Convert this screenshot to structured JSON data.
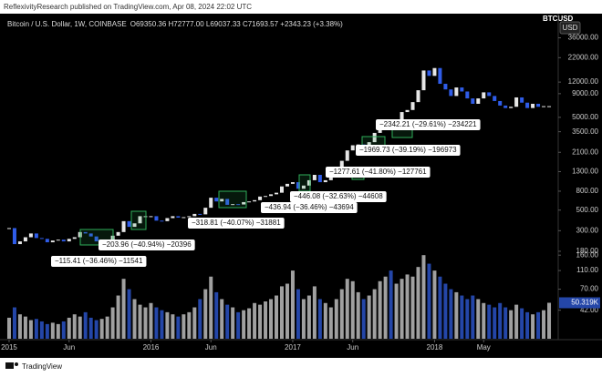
{
  "chart_data": {
    "type": "candlestick",
    "publisher": "ReflexivityResearch published on TradingView.com, Apr 08, 2024 22:02 UTC",
    "title": "Bitcoin / U.S. Dollar, 1W, COINBASE",
    "ohlc": "O69350.36 H72777.00 L69037.33 C71693.57 +2343.23 (+3.38%)",
    "currency": "USD",
    "brand": "TradingView",
    "log_scale": true,
    "grid": false,
    "xlim": [
      -1,
      100
    ],
    "xticks": [
      {
        "value": 0,
        "label": "2015"
      },
      {
        "value": 11,
        "label": "Jun"
      },
      {
        "value": 26,
        "label": "2016"
      },
      {
        "value": 37,
        "label": "Jun"
      },
      {
        "value": 52,
        "label": "2017"
      },
      {
        "value": 63,
        "label": "Jun"
      },
      {
        "value": 78,
        "label": "2018"
      },
      {
        "value": 87,
        "label": "May"
      }
    ],
    "ylim": [
      150,
      50000
    ],
    "yticks": [
      {
        "value": 36000,
        "label": "36000.00"
      },
      {
        "value": 22000,
        "label": "22000.00"
      },
      {
        "value": 12000,
        "label": "12000.00"
      },
      {
        "value": 9000,
        "label": "9000.00"
      },
      {
        "value": 5000,
        "label": "5000.00"
      },
      {
        "value": 3500,
        "label": "3500.00"
      },
      {
        "value": 2100,
        "label": "2100.00"
      },
      {
        "value": 1300,
        "label": "1300.00"
      },
      {
        "value": 800,
        "label": "800.00"
      },
      {
        "value": 500,
        "label": "500.00"
      },
      {
        "value": 300,
        "label": "300.00"
      },
      {
        "value": 180,
        "label": "180.00"
      }
    ],
    "y2lim": [
      21,
      250
    ],
    "y2ticks": [
      {
        "value": 160,
        "label": "160.00"
      },
      {
        "value": 110,
        "label": "110.00"
      },
      {
        "value": 70,
        "label": "70.00"
      },
      {
        "value": 42,
        "label": "42.00"
      }
    ],
    "up_color": "#e6e6e6",
    "down_color": "#2f5ce8",
    "series": [
      {
        "name": "BTCUSD",
        "values": [
          320,
          215,
          230,
          255,
          280,
          250,
          245,
          225,
          235,
          240,
          230,
          245,
          255,
          290,
          280,
          260,
          230,
          235,
          240,
          265,
          290,
          380,
          330,
          360,
          430,
          430,
          430,
          385,
          380,
          410,
          430,
          415,
          420,
          430,
          455,
          450,
          530,
          680,
          620,
          660,
          570,
          580,
          575,
          610,
          620,
          640,
          700,
          710,
          740,
          770,
          900,
          960,
          1000,
          850,
          920,
          1050,
          1200,
          1000,
          1050,
          1180,
          1350,
          1700,
          2200,
          2500,
          2550,
          2300,
          2700,
          3400,
          4300,
          4500,
          3700,
          4300,
          5700,
          6000,
          7300,
          9800,
          16000,
          14000,
          17000,
          11500,
          10000,
          8500,
          10500,
          9500,
          8000,
          7000,
          8000,
          9300,
          8500,
          7500,
          6700,
          6300,
          6500,
          8200,
          7200,
          6300,
          7000,
          6500,
          6600,
          6600
        ]
      },
      {
        "axis": "y2",
        "up_color": "#a0a0a0",
        "down_color": "#2446a8",
        "values": [
          35,
          45,
          38,
          36,
          33,
          34,
          32,
          30,
          31,
          30,
          32,
          35,
          38,
          36,
          40,
          35,
          33,
          34,
          36,
          45,
          60,
          90,
          70,
          55,
          48,
          45,
          50,
          45,
          42,
          40,
          38,
          36,
          38,
          40,
          45,
          55,
          70,
          95,
          65,
          55,
          48,
          45,
          40,
          42,
          44,
          50,
          48,
          52,
          55,
          60,
          75,
          80,
          110,
          70,
          55,
          60,
          75,
          55,
          50,
          45,
          55,
          70,
          90,
          85,
          65,
          55,
          60,
          70,
          85,
          95,
          110,
          80,
          90,
          100,
          95,
          120,
          160,
          130,
          110,
          95,
          80,
          70,
          65,
          60,
          55,
          60,
          55,
          50,
          48,
          45,
          50,
          45,
          42,
          48,
          44,
          40,
          38,
          40,
          42,
          50.319
        ],
        "value_labels": [
          null,
          null,
          null,
          null,
          null,
          null,
          null,
          null,
          null,
          null,
          null,
          null,
          null,
          null,
          null,
          null,
          null,
          null,
          null,
          null,
          null,
          null,
          null,
          null,
          null,
          null,
          null,
          null,
          null,
          null,
          null,
          null,
          null,
          null,
          null,
          null,
          null,
          null,
          null,
          null,
          null,
          null,
          null,
          null,
          null,
          null,
          null,
          null,
          null,
          null,
          null,
          null,
          null,
          null,
          null,
          null,
          null,
          null,
          null,
          null,
          null,
          null,
          null,
          null,
          null,
          null,
          null,
          null,
          null,
          null,
          null,
          null,
          null,
          null,
          null,
          null,
          null,
          null,
          null,
          null,
          null,
          null,
          null,
          null,
          null,
          null,
          null,
          null,
          null,
          null,
          null,
          null,
          null,
          null,
          null,
          null,
          null,
          null,
          null,
          "50.319K"
        ]
      }
    ],
    "annotations": [
      "−115.41 (−36.46%) −11541",
      "−203.96 (−40.94%) −20396",
      "−318.81 (−40.07%) −31881",
      "−436.94 (−36.46%) −43694",
      "−446.08 (−32.63%) −44608",
      "−1277.61 (−41.80%) −127761",
      "−1969.73 (−39.19%) −196973",
      "−2342.21 (−29.61%) −234221"
    ]
  }
}
